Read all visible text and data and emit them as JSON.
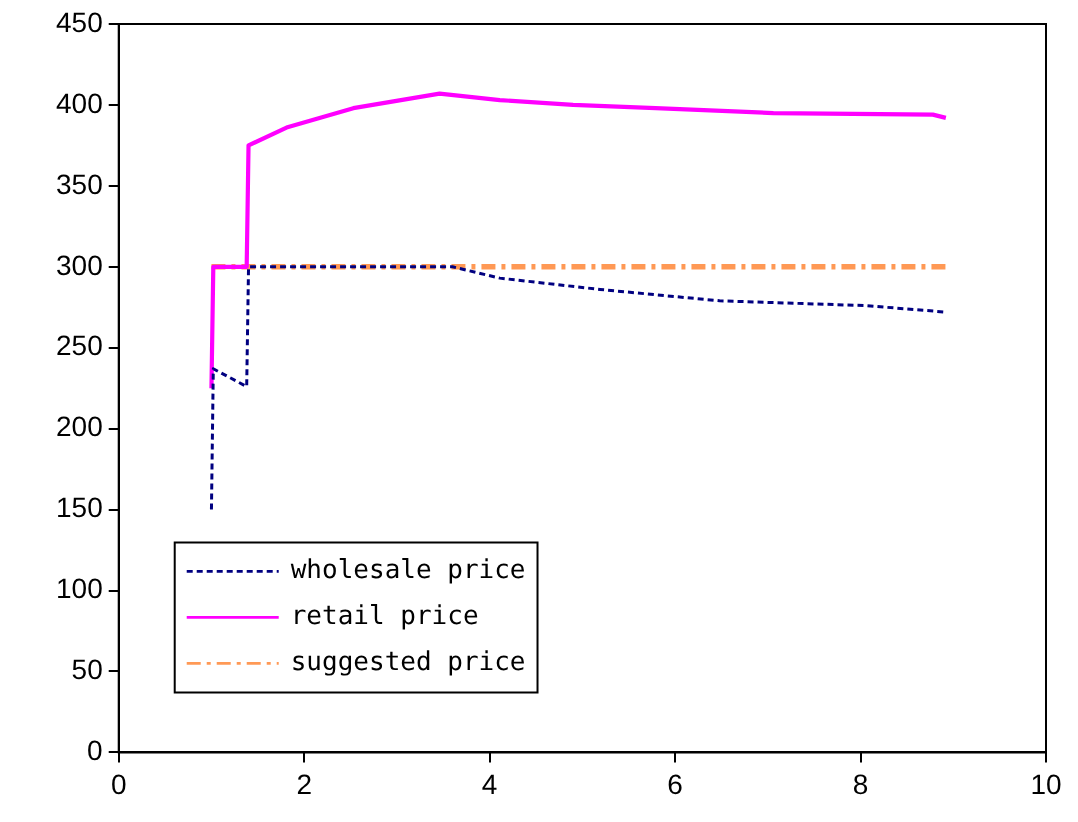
{
  "chart_data": {
    "type": "line",
    "xlim": [
      0,
      10
    ],
    "xticks": [
      0,
      2,
      4,
      6,
      8,
      10
    ],
    "ylim": [
      0,
      450
    ],
    "yticks": [
      0,
      50,
      100,
      150,
      200,
      250,
      300,
      350,
      400,
      450
    ],
    "grid": false,
    "legend": "bottom left",
    "marker": "none",
    "series": [
      {
        "name": "wholesale price",
        "color": "#000080",
        "line_style": "dotted",
        "x": [
          1.0,
          1.02,
          1.38,
          1.4,
          3.6,
          4.11,
          5.19,
          6.48,
          8.06,
          8.92
        ],
        "values": [
          150,
          237,
          226,
          300,
          300,
          293,
          286,
          279,
          276,
          272
        ]
      },
      {
        "name": "retail price",
        "color": "#ff00ff",
        "line_style": "solid",
        "x": [
          1.0,
          1.02,
          1.38,
          1.4,
          1.81,
          2.53,
          3.46,
          4.11,
          4.9,
          5.79,
          7.06,
          8.78,
          8.92
        ],
        "values": [
          225,
          300,
          300,
          375,
          386,
          398,
          407,
          403,
          400,
          398,
          395,
          394,
          392
        ]
      },
      {
        "name": "suggested price",
        "color": "#ff9955",
        "line_style": "dashed",
        "x": [
          1.0,
          8.92
        ],
        "values": [
          300,
          300
        ]
      }
    ]
  }
}
